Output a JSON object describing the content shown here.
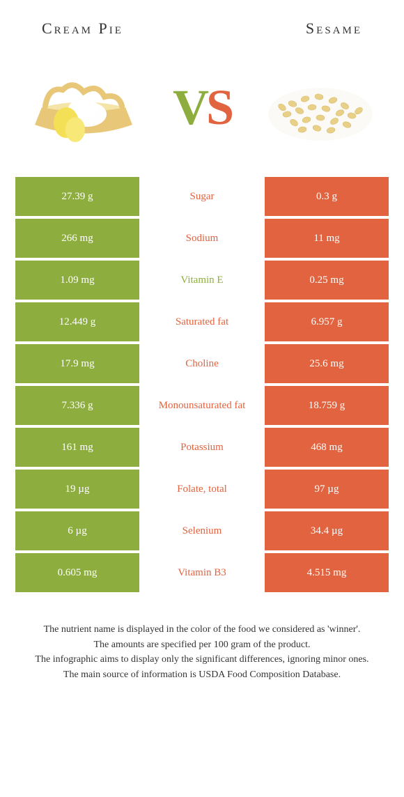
{
  "colors": {
    "green": "#8dae3e",
    "orange": "#e1633f",
    "green_text": "#8dae3e",
    "orange_text": "#e1633f",
    "white": "#ffffff",
    "text": "#333333"
  },
  "header": {
    "left": "Cream Pie",
    "right": "Sesame"
  },
  "vs": {
    "v": "V",
    "s": "S"
  },
  "nutrients": [
    {
      "name": "Sugar",
      "left_val": "27.39 g",
      "right_val": "0.3 g",
      "winner": "right"
    },
    {
      "name": "Sodium",
      "left_val": "266 mg",
      "right_val": "11 mg",
      "winner": "right"
    },
    {
      "name": "Vitamin E",
      "left_val": "1.09 mg",
      "right_val": "0.25 mg",
      "winner": "left"
    },
    {
      "name": "Saturated fat",
      "left_val": "12.449 g",
      "right_val": "6.957 g",
      "winner": "right"
    },
    {
      "name": "Choline",
      "left_val": "17.9 mg",
      "right_val": "25.6 mg",
      "winner": "right"
    },
    {
      "name": "Monounsaturated fat",
      "left_val": "7.336 g",
      "right_val": "18.759 g",
      "winner": "right"
    },
    {
      "name": "Potassium",
      "left_val": "161 mg",
      "right_val": "468 mg",
      "winner": "right"
    },
    {
      "name": "Folate, total",
      "left_val": "19 µg",
      "right_val": "97 µg",
      "winner": "right"
    },
    {
      "name": "Selenium",
      "left_val": "6 µg",
      "right_val": "34.4 µg",
      "winner": "right"
    },
    {
      "name": "Vitamin B3",
      "left_val": "0.605 mg",
      "right_val": "4.515 mg",
      "winner": "right"
    }
  ],
  "footer": {
    "line1": "The nutrient name is displayed in the color of the food we considered as 'winner'.",
    "line2": "The amounts are specified per 100 gram of the product.",
    "line3": "The infographic aims to display only the significant differences, ignoring minor ones.",
    "line4": "The main source of information is USDA Food Composition Database."
  }
}
